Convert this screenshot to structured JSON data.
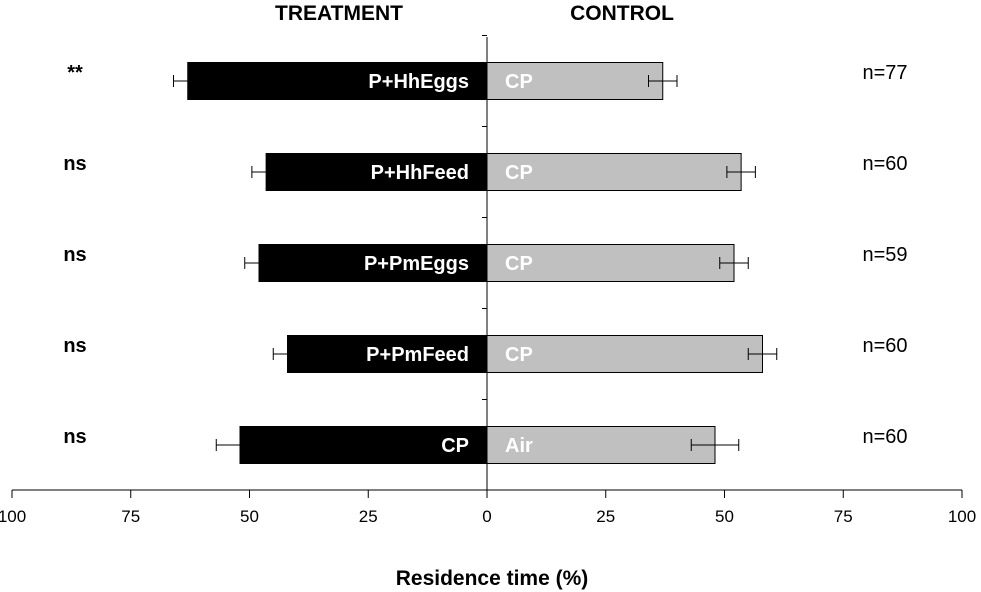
{
  "chart_data": {
    "type": "bar",
    "orientation": "horizontal-diverging",
    "left_header": "TREATMENT",
    "right_header": "CONTROL",
    "xlabel": "Residence time (%)",
    "xlim": [
      -100,
      100
    ],
    "xticks": [
      -100,
      -75,
      -50,
      -25,
      0,
      25,
      50,
      75,
      100
    ],
    "xtick_labels": [
      "100",
      "75",
      "50",
      "25",
      "0",
      "25",
      "50",
      "75",
      "100"
    ],
    "colors": {
      "treatment": "#000000",
      "control": "#c0c0c0",
      "error": "#000000"
    },
    "rows": [
      {
        "significance": "**",
        "treatment_label": "P+HhEggs",
        "treatment_value": 63,
        "treatment_error": 3,
        "control_label": "CP",
        "control_value": 37,
        "control_error": 3,
        "n": "n=77"
      },
      {
        "significance": "ns",
        "treatment_label": "P+HhFeed",
        "treatment_value": 46.5,
        "treatment_error": 3,
        "control_label": "CP",
        "control_value": 53.5,
        "control_error": 3,
        "n": "n=60"
      },
      {
        "significance": "ns",
        "treatment_label": "P+PmEggs",
        "treatment_value": 48,
        "treatment_error": 3,
        "control_label": "CP",
        "control_value": 52,
        "control_error": 3,
        "n": "n=59"
      },
      {
        "significance": "ns",
        "treatment_label": "P+PmFeed",
        "treatment_value": 42,
        "treatment_error": 3,
        "control_label": "CP",
        "control_value": 58,
        "control_error": 3,
        "n": "n=60"
      },
      {
        "significance": "ns",
        "treatment_label": "CP",
        "treatment_value": 52,
        "treatment_error": 5,
        "control_label": "Air",
        "control_value": 48,
        "control_error": 5,
        "n": "n=60"
      }
    ]
  }
}
